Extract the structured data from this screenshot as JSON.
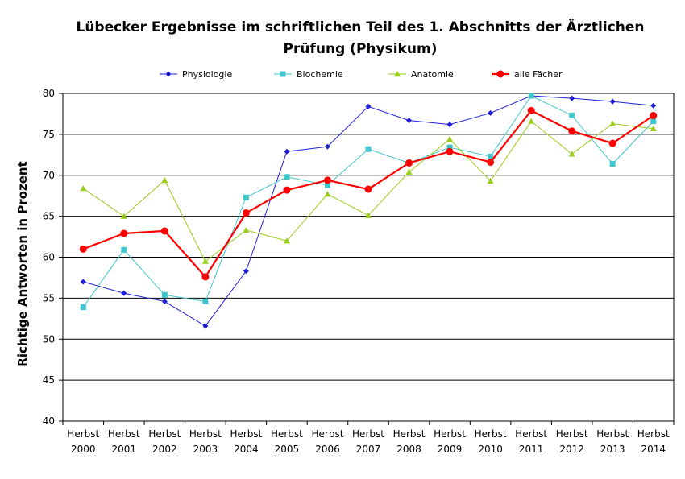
{
  "chart_data": {
    "type": "line",
    "title_line1": "Lübecker Ergebnisse im schriftlichen Teil des 1. Abschnitts der Ärztlichen",
    "title_line2": "Prüfung (Physikum)",
    "ylabel": "Richtige Antworten in Prozent",
    "xlabel": "",
    "ylim": [
      40,
      80
    ],
    "ytick_step": 5,
    "grid": true,
    "legend_position": "top",
    "categories": [
      [
        "Herbst",
        "2000"
      ],
      [
        "Herbst",
        "2001"
      ],
      [
        "Herbst",
        "2002"
      ],
      [
        "Herbst",
        "2003"
      ],
      [
        "Herbst",
        "2004"
      ],
      [
        "Herbst",
        "2005"
      ],
      [
        "Herbst",
        "2006"
      ],
      [
        "Herbst",
        "2007"
      ],
      [
        "Herbst",
        "2008"
      ],
      [
        "Herbst",
        "2009"
      ],
      [
        "Herbst",
        "2010"
      ],
      [
        "Herbst",
        "2011"
      ],
      [
        "Herbst",
        "2012"
      ],
      [
        "Herbst",
        "2013"
      ],
      [
        "Herbst",
        "2014"
      ]
    ],
    "series": [
      {
        "name": "Physiologie",
        "color": "#1f1fd8",
        "marker": "diamond",
        "values": [
          57.0,
          55.6,
          54.6,
          51.6,
          58.3,
          72.9,
          73.5,
          78.4,
          76.7,
          76.2,
          77.6,
          79.7,
          79.4,
          79.0,
          78.5
        ]
      },
      {
        "name": "Biochemie",
        "color": "#3fc6cc",
        "marker": "square",
        "values": [
          53.9,
          60.9,
          55.4,
          54.6,
          67.3,
          69.8,
          68.8,
          73.2,
          71.5,
          73.4,
          72.3,
          79.7,
          77.3,
          71.4,
          76.6
        ]
      },
      {
        "name": "Anatomie",
        "color": "#9acd1e",
        "marker": "triangle",
        "values": [
          68.4,
          65.0,
          69.4,
          59.5,
          63.3,
          62.0,
          67.7,
          65.1,
          70.4,
          74.4,
          69.3,
          76.6,
          72.6,
          76.3,
          75.7
        ]
      },
      {
        "name": "alle Fächer",
        "color": "#ff0000",
        "marker": "circle",
        "values": [
          61.0,
          62.9,
          63.2,
          57.6,
          65.4,
          68.2,
          69.4,
          68.3,
          71.5,
          72.9,
          71.6,
          77.9,
          75.4,
          73.9,
          77.3
        ]
      }
    ]
  }
}
